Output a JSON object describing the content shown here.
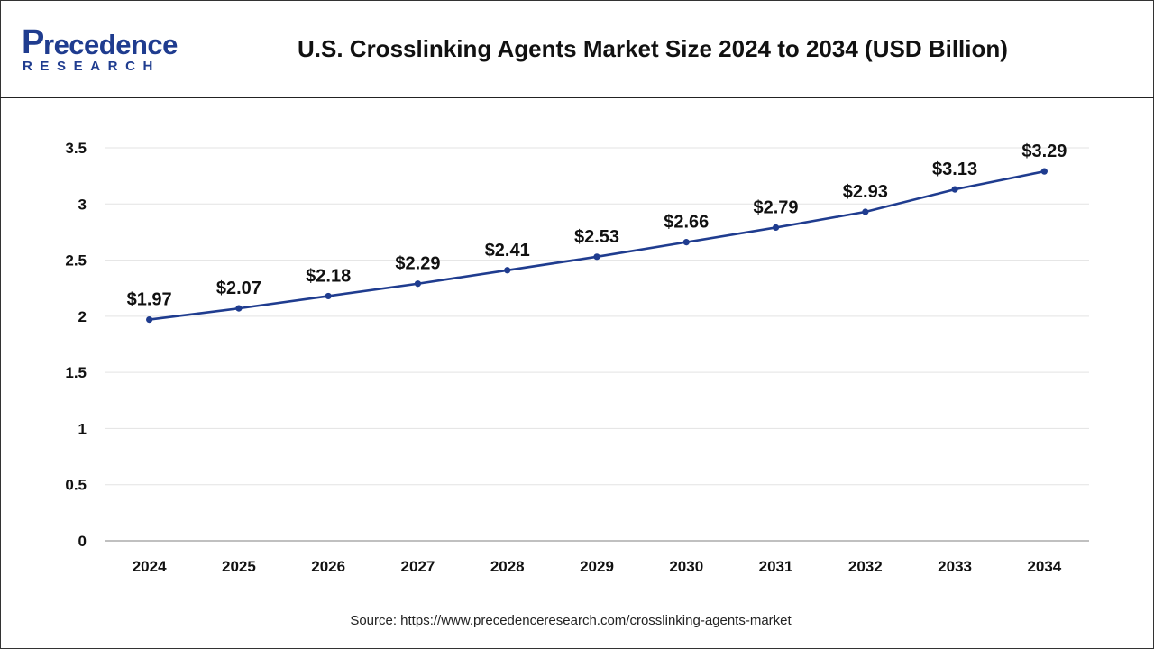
{
  "header": {
    "logo_main": "recedence",
    "logo_mark": "P",
    "logo_sub": "RESEARCH",
    "title": "U.S. Crosslinking Agents Market Size 2024 to 2034 (USD Billion)"
  },
  "colors": {
    "line": "#1f3c8f",
    "brand": "#1f3c8f",
    "grid": "#e3e3e3"
  },
  "chart_data": {
    "type": "line",
    "title": "U.S. Crosslinking Agents Market Size 2024 to 2034 (USD Billion)",
    "xlabel": "",
    "ylabel": "",
    "categories": [
      "2024",
      "2025",
      "2026",
      "2027",
      "2028",
      "2029",
      "2030",
      "2031",
      "2032",
      "2033",
      "2034"
    ],
    "series": [
      {
        "values": [
          1.97,
          2.07,
          2.18,
          2.29,
          2.41,
          2.53,
          2.66,
          2.79,
          2.93,
          3.13,
          3.29
        ],
        "labels": [
          "$1.97",
          "$2.07",
          "$2.18",
          "$2.29",
          "$2.41",
          "$2.53",
          "$2.66",
          "$2.79",
          "$2.93",
          "$3.13",
          "$3.29"
        ]
      }
    ],
    "ylim": [
      0,
      3.5
    ],
    "yticks": [
      0,
      0.5,
      1,
      1.5,
      2,
      2.5,
      3,
      3.5
    ],
    "ytick_labels": [
      "0",
      "0.5",
      "1",
      "1.5",
      "2",
      "2.5",
      "3",
      "3.5"
    ],
    "grid": true,
    "legend": "none"
  },
  "footer": {
    "source": "Source: https://www.precedenceresearch.com/crosslinking-agents-market"
  }
}
